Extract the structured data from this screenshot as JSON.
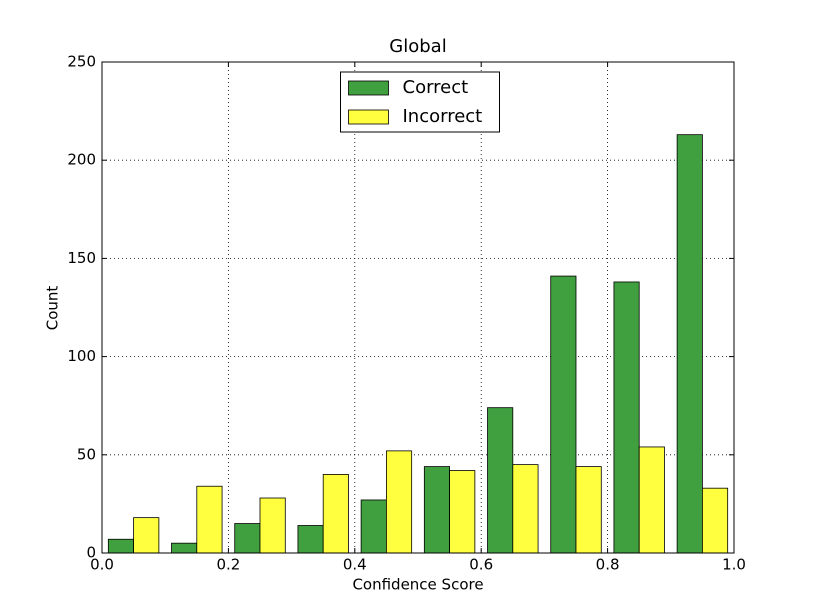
{
  "chart_data": {
    "type": "histogram",
    "title": "Global",
    "xlabel": "Confidence Score",
    "ylabel": "Count",
    "bins": [
      0,
      0.1,
      0.2,
      0.3,
      0.4,
      0.5,
      0.6,
      0.7,
      0.8,
      0.9,
      1
    ],
    "series": [
      {
        "name": "Correct",
        "color": "#40a040",
        "values": [
          7,
          5,
          15,
          14,
          27,
          44,
          74,
          141,
          138,
          213
        ]
      },
      {
        "name": "Incorrect",
        "color": "#ffff40",
        "values": [
          18,
          34,
          28,
          40,
          52,
          42,
          45,
          44,
          54,
          33
        ]
      }
    ],
    "xlim": [
      0,
      1
    ],
    "xticks": [
      {
        "value": 0,
        "label": "0.0"
      },
      0.2,
      0.4,
      0.6,
      0.8,
      {
        "value": 1,
        "label": "1.0"
      }
    ],
    "ylim": [
      0,
      250
    ],
    "yticks": [
      0,
      50,
      100,
      150,
      200,
      250
    ],
    "grid": true,
    "legend": "upper center"
  }
}
